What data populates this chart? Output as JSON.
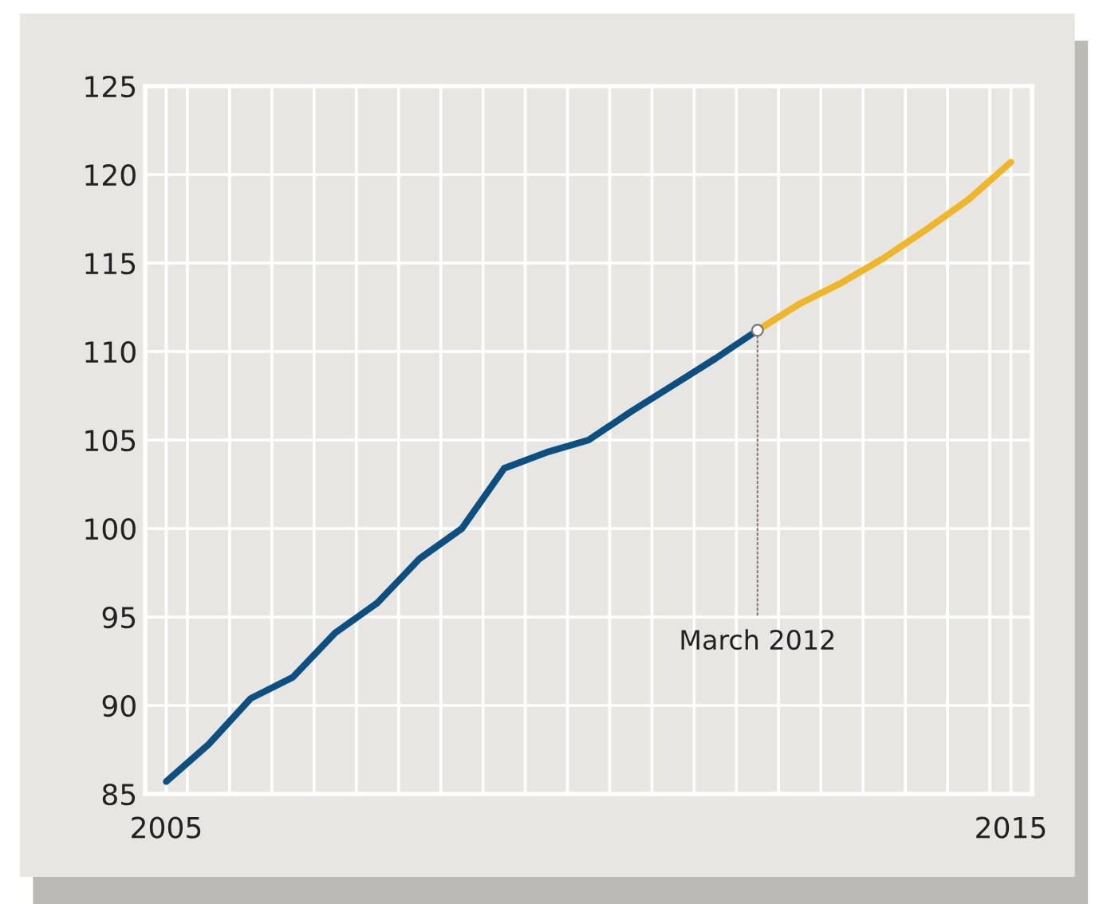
{
  "chart_data": {
    "type": "line",
    "series": [
      {
        "color": "#0d4f80",
        "x": [
          2005.0,
          2005.5,
          2006.0,
          2006.5,
          2007.0,
          2007.5,
          2008.0,
          2008.5,
          2009.0,
          2009.5,
          2010.0,
          2010.5,
          2011.0,
          2011.5,
          2012.0
        ],
        "values": [
          85.7,
          87.8,
          90.4,
          91.6,
          94.1,
          95.8,
          98.3,
          100.0,
          103.4,
          104.3,
          105.0,
          106.6,
          108.1,
          109.6,
          111.2
        ]
      },
      {
        "color": "#f0b62b",
        "x": [
          2012.0,
          2012.5,
          2013.0,
          2013.5,
          2014.0,
          2014.5,
          2015.0
        ],
        "values": [
          111.2,
          112.7,
          113.9,
          115.3,
          116.9,
          118.6,
          120.7
        ]
      }
    ],
    "xlim": [
      2004.75,
      2015.25
    ],
    "xticks": [
      2005,
      {
        "value": 2005.25,
        "label": null
      },
      {
        "value": 2005.75,
        "label": null
      },
      {
        "value": 2006.25,
        "label": null
      },
      {
        "value": 2006.75,
        "label": null
      },
      {
        "value": 2007.25,
        "label": null
      },
      {
        "value": 2007.75,
        "label": null
      },
      {
        "value": 2008.25,
        "label": null
      },
      {
        "value": 2008.75,
        "label": null
      },
      {
        "value": 2009.25,
        "label": null
      },
      {
        "value": 2009.75,
        "label": null
      },
      {
        "value": 2010.25,
        "label": null
      },
      {
        "value": 2010.75,
        "label": null
      },
      {
        "value": 2011.25,
        "label": null
      },
      {
        "value": 2011.75,
        "label": null
      },
      {
        "value": 2012.25,
        "label": null
      },
      {
        "value": 2012.75,
        "label": null
      },
      {
        "value": 2013.25,
        "label": null
      },
      {
        "value": 2013.75,
        "label": null
      },
      {
        "value": 2014.25,
        "label": null
      },
      {
        "value": 2014.75,
        "label": null
      },
      2015
    ],
    "ylim": [
      85,
      125
    ],
    "yticks": [
      85,
      90,
      95,
      100,
      105,
      110,
      115,
      120,
      125
    ],
    "grid": true,
    "line_style": "solid",
    "annotations": [
      {
        "text": "March 2012",
        "x": 2012.0,
        "y": 111.2
      }
    ]
  }
}
